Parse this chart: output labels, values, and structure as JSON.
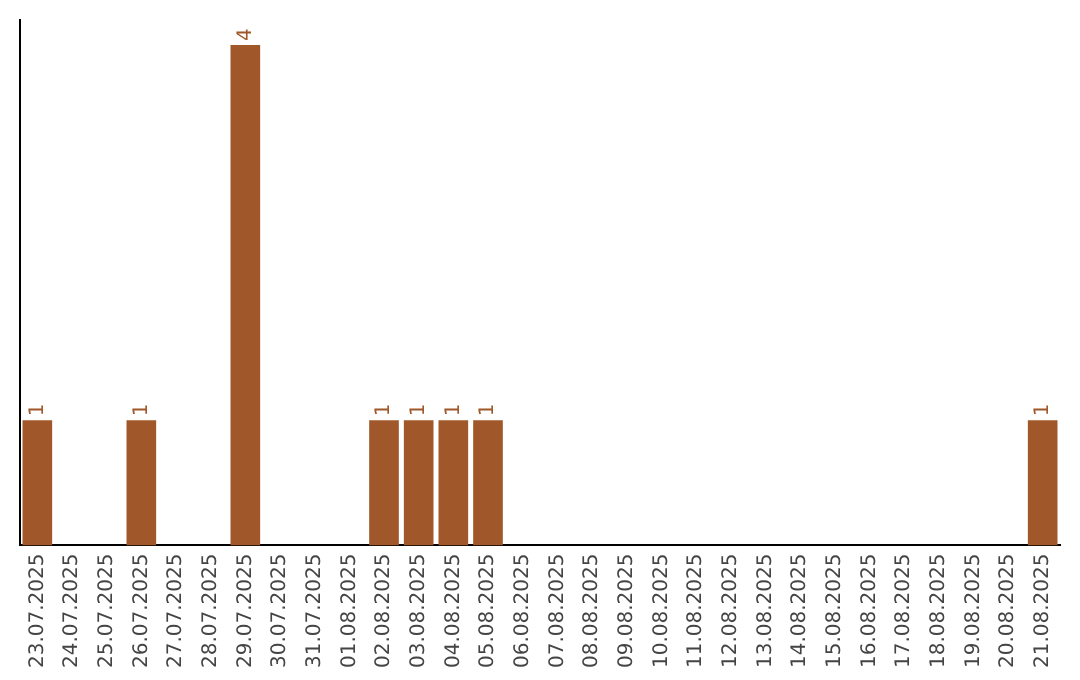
{
  "chart_data": {
    "type": "bar",
    "categories": [
      "23.07.2025",
      "24.07.2025",
      "25.07.2025",
      "26.07.2025",
      "27.07.2025",
      "28.07.2025",
      "29.07.2025",
      "30.07.2025",
      "31.07.2025",
      "01.08.2025",
      "02.08.2025",
      "03.08.2025",
      "04.08.2025",
      "05.08.2025",
      "06.08.2025",
      "07.08.2025",
      "08.08.2025",
      "09.08.2025",
      "10.08.2025",
      "11.08.2025",
      "12.08.2025",
      "13.08.2025",
      "14.08.2025",
      "15.08.2025",
      "16.08.2025",
      "17.08.2025",
      "18.08.2025",
      "19.08.2025",
      "20.08.2025",
      "21.08.2025"
    ],
    "values": [
      1,
      0,
      0,
      1,
      0,
      0,
      4,
      0,
      0,
      0,
      1,
      1,
      1,
      1,
      0,
      0,
      0,
      0,
      0,
      0,
      0,
      0,
      0,
      0,
      0,
      0,
      0,
      0,
      0,
      1
    ],
    "color": "#a0582a",
    "ylim": [
      0,
      4.2
    ],
    "tick_labels": "x",
    "grid": false,
    "legend": false,
    "value_labels": [
      "1",
      null,
      null,
      "1",
      null,
      null,
      "4",
      null,
      null,
      null,
      "1",
      "1",
      "1",
      "1",
      null,
      null,
      null,
      null,
      null,
      null,
      null,
      null,
      null,
      null,
      null,
      null,
      null,
      null,
      null,
      "1"
    ]
  }
}
